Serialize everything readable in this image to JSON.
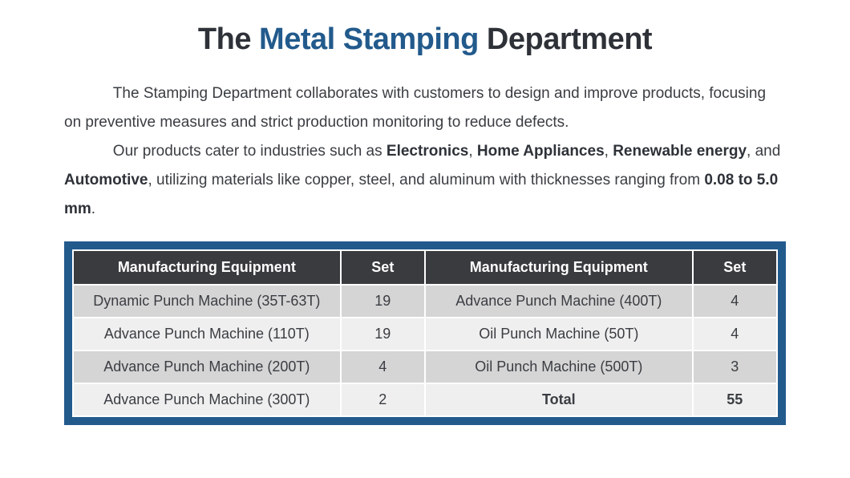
{
  "title": {
    "part1": "The ",
    "accent": "Metal Stamping",
    "part2": " Department"
  },
  "paragraphs": {
    "p1": "The Stamping Department collaborates with customers to design and improve products, focusing on preventive measures and strict production monitoring to reduce defects.",
    "p2_lead": "Our products cater to industries such as ",
    "p2_b1": "Electronics",
    "p2_s1": ", ",
    "p2_b2": "Home Appliances",
    "p2_s2": ", ",
    "p2_b3": "Renewable energy",
    "p2_s3": ", and ",
    "p2_b4": "Automotive",
    "p2_s4": ", utilizing materials like copper, steel, and aluminum with thicknesses ranging from ",
    "p2_b5": "0.08 to 5.0 mm",
    "p2_end": "."
  },
  "table": {
    "headers": {
      "col1": "Manufacturing Equipment",
      "col2": "Set",
      "col3": "Manufacturing Equipment",
      "col4": "Set"
    },
    "rows": [
      {
        "c1": "Dynamic Punch Machine (35T-63T)",
        "c2": "19",
        "c3": "Advance Punch Machine (400T)",
        "c4": "4"
      },
      {
        "c1": "Advance Punch Machine (110T)",
        "c2": "19",
        "c3": "Oil Punch Machine (50T)",
        "c4": "4"
      },
      {
        "c1": "Advance Punch Machine (200T)",
        "c2": "4",
        "c3": "Oil Punch Machine (500T)",
        "c4": "3"
      },
      {
        "c1": "Advance Punch Machine (300T)",
        "c2": "2",
        "c3": "Total",
        "c4": "55"
      }
    ],
    "colors": {
      "border": "#225a8c",
      "header_bg": "#393b3f",
      "header_fg": "#ffffff",
      "row_bg": "#efefef",
      "row_alt_bg": "#d5d5d5",
      "cell_border": "#ffffff",
      "text": "#3a3d42"
    },
    "font_sizes": {
      "header": 18,
      "cell": 18
    },
    "col_widths_pct": [
      38,
      12,
      38,
      12
    ]
  },
  "styling": {
    "page_bg": "#ffffff",
    "title_fontsize": 38,
    "body_fontsize": 19,
    "title_dark": "#2e3238",
    "title_accent": "#225a8c",
    "body_color": "#3a3d42"
  }
}
